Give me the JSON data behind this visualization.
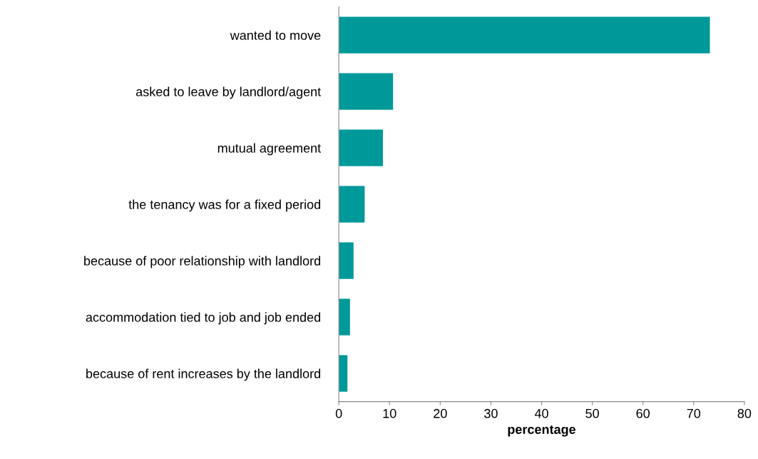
{
  "chart_data": {
    "type": "bar",
    "orientation": "horizontal",
    "xlabel": "percentage",
    "categories": [
      "wanted to move",
      "asked to leave by landlord/agent",
      "mutual agreement",
      "the tenancy was for a fixed period",
      "because of poor relationship with landlord",
      "accommodation tied to job and job ended",
      "because of rent increases by the landlord"
    ],
    "values": [
      73.2,
      10.7,
      8.7,
      5.1,
      2.9,
      2.2,
      1.7
    ],
    "color": "#009999",
    "xlim": [
      0,
      80
    ],
    "xticks": [
      0,
      10,
      20,
      30,
      40,
      50,
      60,
      70,
      80
    ],
    "grid": false,
    "legend": false
  }
}
